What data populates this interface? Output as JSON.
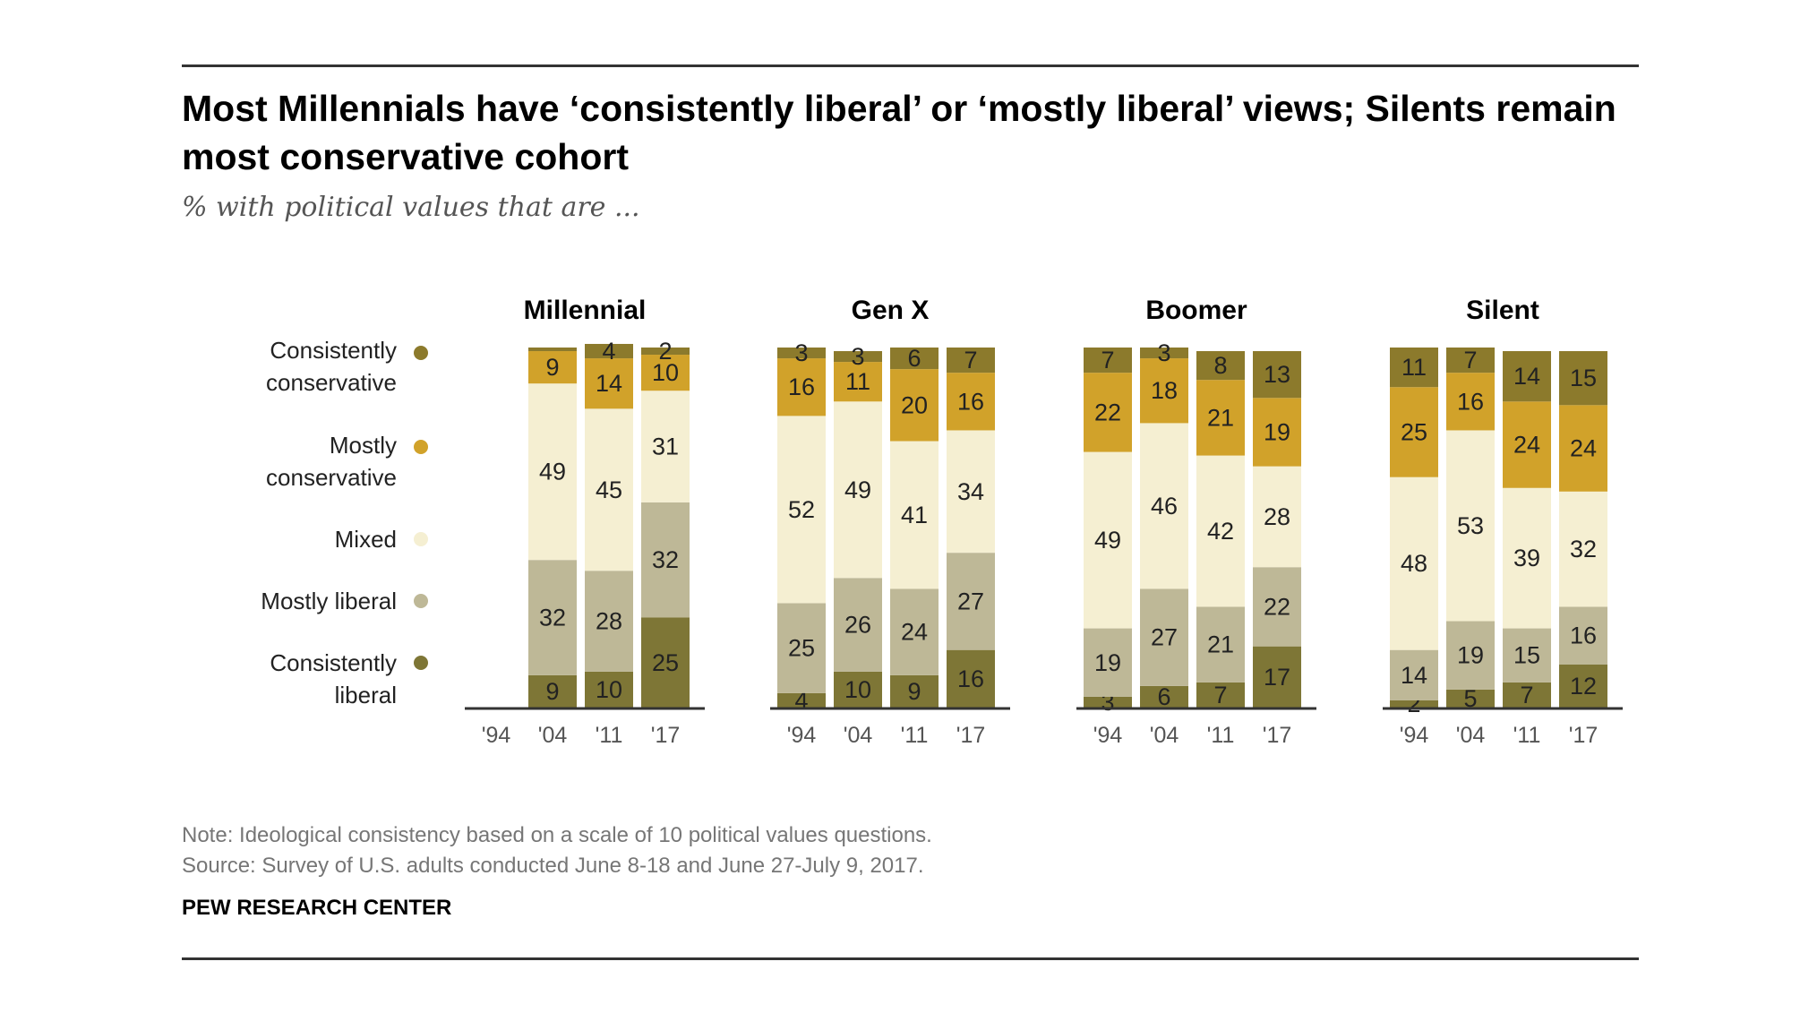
{
  "title": "Most Millennials have ‘consistently liberal’ or ‘mostly liberal’ views; Silents remain most conservative cohort",
  "subtitle": "% with political values that are ...",
  "note": "Note: Ideological consistency based on a scale of 10 political values questions.",
  "source": "Source: Survey of U.S. adults conducted June 8-18 and June 27-July 9, 2017.",
  "brand": "PEW RESEARCH CENTER",
  "colors": {
    "consistently_conservative": "#8c7a2c",
    "mostly_conservative": "#d1a22a",
    "mixed": "#f5efd2",
    "mostly_liberal": "#beb897",
    "consistently_liberal": "#7e7636",
    "axis": "#333333"
  },
  "chart_data": {
    "type": "bar",
    "stacked": true,
    "percent": true,
    "categories": [
      "'94",
      "'04",
      "'11",
      "'17"
    ],
    "legend": [
      {
        "key": "consistently_conservative",
        "lines": [
          "Consistently",
          "conservative"
        ]
      },
      {
        "key": "mostly_conservative",
        "lines": [
          "Mostly",
          "conservative"
        ]
      },
      {
        "key": "mixed",
        "lines": [
          "Mixed"
        ]
      },
      {
        "key": "mostly_liberal",
        "lines": [
          "Mostly liberal"
        ]
      },
      {
        "key": "consistently_liberal",
        "lines": [
          "Consistently",
          "liberal"
        ]
      }
    ],
    "stack_order_bottom_to_top": [
      "consistently_liberal",
      "mostly_liberal",
      "mixed",
      "mostly_conservative",
      "consistently_conservative"
    ],
    "panels": [
      {
        "name": "Millennial",
        "series": {
          "consistently_liberal": [
            null,
            9,
            10,
            25
          ],
          "mostly_liberal": [
            null,
            32,
            28,
            32
          ],
          "mixed": [
            null,
            49,
            45,
            31
          ],
          "mostly_conservative": [
            null,
            9,
            14,
            10
          ],
          "consistently_conservative": [
            null,
            1,
            4,
            2
          ]
        },
        "labels": {
          "consistently_conservative": [
            null,
            "",
            "4",
            "2"
          ]
        }
      },
      {
        "name": "Gen X",
        "series": {
          "consistently_liberal": [
            4,
            10,
            9,
            16
          ],
          "mostly_liberal": [
            25,
            26,
            24,
            27
          ],
          "mixed": [
            52,
            49,
            41,
            34
          ],
          "mostly_conservative": [
            16,
            11,
            20,
            16
          ],
          "consistently_conservative": [
            3,
            3,
            6,
            7
          ]
        }
      },
      {
        "name": "Boomer",
        "series": {
          "consistently_liberal": [
            3,
            6,
            7,
            17
          ],
          "mostly_liberal": [
            19,
            27,
            21,
            22
          ],
          "mixed": [
            49,
            46,
            42,
            28
          ],
          "mostly_conservative": [
            22,
            18,
            21,
            19
          ],
          "consistently_conservative": [
            7,
            3,
            8,
            13
          ]
        }
      },
      {
        "name": "Silent",
        "series": {
          "consistently_liberal": [
            2,
            5,
            7,
            12
          ],
          "mostly_liberal": [
            14,
            19,
            15,
            16
          ],
          "mixed": [
            48,
            53,
            39,
            32
          ],
          "mostly_conservative": [
            25,
            16,
            24,
            24
          ],
          "consistently_conservative": [
            11,
            7,
            14,
            15
          ]
        }
      }
    ]
  }
}
